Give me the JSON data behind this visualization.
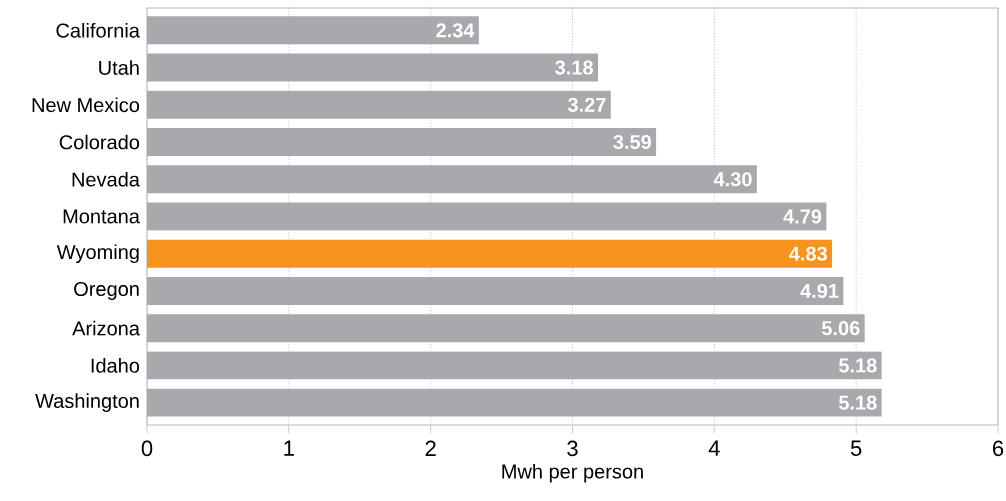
{
  "chart_data": {
    "type": "bar",
    "orientation": "horizontal",
    "xlabel": "Mwh per person",
    "categories": [
      "California",
      "Utah",
      "New Mexico",
      "Colorado",
      "Nevada",
      "Montana",
      "Wyoming",
      "Oregon",
      "Arizona",
      "Idaho",
      "Washington"
    ],
    "values": [
      2.34,
      3.18,
      3.27,
      3.59,
      4.3,
      4.79,
      4.83,
      4.91,
      5.06,
      5.18,
      5.18
    ],
    "value_labels": [
      "2.34",
      "3.18",
      "3.27",
      "3.59",
      "4.30",
      "4.79",
      "4.83",
      "4.91",
      "5.06",
      "5.18",
      "5.18"
    ],
    "colors": [
      "#a7a9ac",
      "#a7a9ac",
      "#a7a9ac",
      "#a7a9ac",
      "#a7a9ac",
      "#a7a9ac",
      "#f7941d",
      "#a7a9ac",
      "#a7a9ac",
      "#a7a9ac",
      "#a7a9ac"
    ],
    "xlim": [
      0,
      6
    ],
    "xticks": [
      0,
      1,
      2,
      3,
      4,
      5,
      6
    ],
    "grid": "x"
  }
}
